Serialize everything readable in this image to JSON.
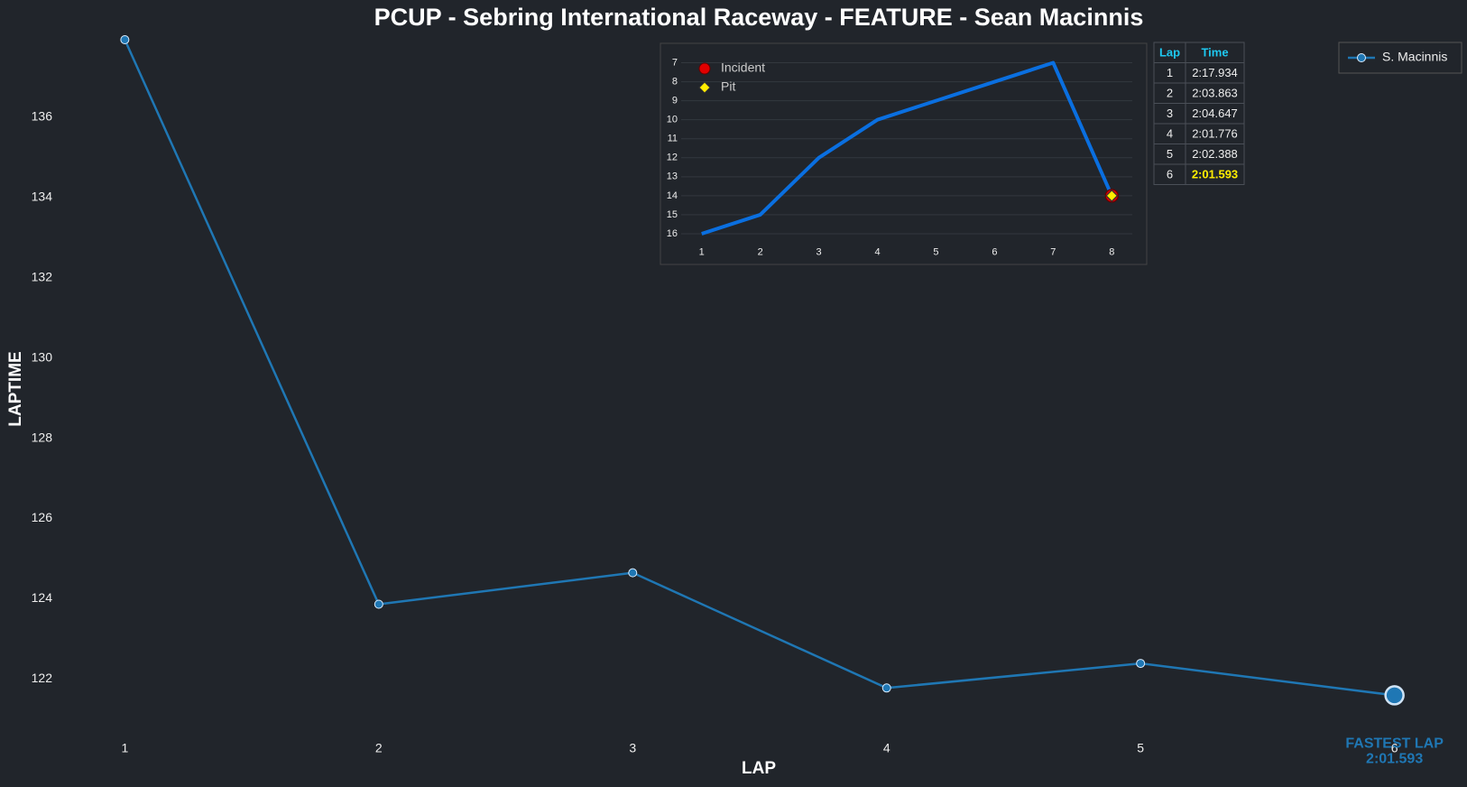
{
  "chart_data": [
    {
      "type": "line",
      "title": "PCUP - Sebring International Raceway - FEATURE - Sean Macinnis",
      "xlabel": "LAP",
      "ylabel": "LAPTIME",
      "x": [
        1,
        2,
        3,
        4,
        5,
        6
      ],
      "series": [
        {
          "name": "S. Macinnis",
          "color": "#1f77b4",
          "values": [
            137.934,
            123.863,
            124.647,
            121.776,
            122.388,
            121.593
          ]
        }
      ],
      "xlim": [
        0.75,
        6.25
      ],
      "ylim": [
        120.5,
        137.934
      ],
      "xticks": [
        1,
        2,
        3,
        4,
        5,
        6
      ],
      "yticks": [
        122,
        124,
        126,
        128,
        130,
        132,
        134,
        136
      ],
      "grid": false,
      "legend": "upper right",
      "annotation": {
        "x": 6,
        "y": 121.593,
        "lines": [
          "FASTEST LAP",
          "2:01.593"
        ]
      }
    },
    {
      "type": "line",
      "x": [
        1,
        2,
        3,
        4,
        5,
        6,
        7,
        8
      ],
      "series": [
        {
          "color": "#0a6fe0",
          "values": [
            16,
            15,
            12,
            10,
            9,
            8,
            7,
            14
          ]
        }
      ],
      "markers": [
        {
          "name": "Incident",
          "color": "#e00000",
          "shape": "circle",
          "x": [
            8
          ],
          "y": [
            14
          ]
        },
        {
          "name": "Pit",
          "color": "#ffee00",
          "shape": "diamond",
          "x": [
            8
          ],
          "y": [
            14
          ]
        }
      ],
      "xlim": [
        0.65,
        8.35
      ],
      "ylim": [
        16.5,
        6.5
      ],
      "xticks": [
        1,
        2,
        3,
        4,
        5,
        6,
        7,
        8
      ],
      "yticks": [
        7,
        8,
        9,
        10,
        11,
        12,
        13,
        14,
        15,
        16
      ],
      "grid": true,
      "legend": "upper left"
    }
  ],
  "table": {
    "columns": [
      "Lap",
      "Time"
    ],
    "rows": [
      [
        1,
        "2:17.934"
      ],
      [
        2,
        "2:03.863"
      ],
      [
        3,
        "2:04.647"
      ],
      [
        4,
        "2:01.776"
      ],
      [
        5,
        "2:02.388"
      ],
      [
        6,
        "2:01.593"
      ]
    ],
    "highlight_row": 5,
    "highlight_color": "#ffee00",
    "header_color": "#1ec8f0"
  }
}
